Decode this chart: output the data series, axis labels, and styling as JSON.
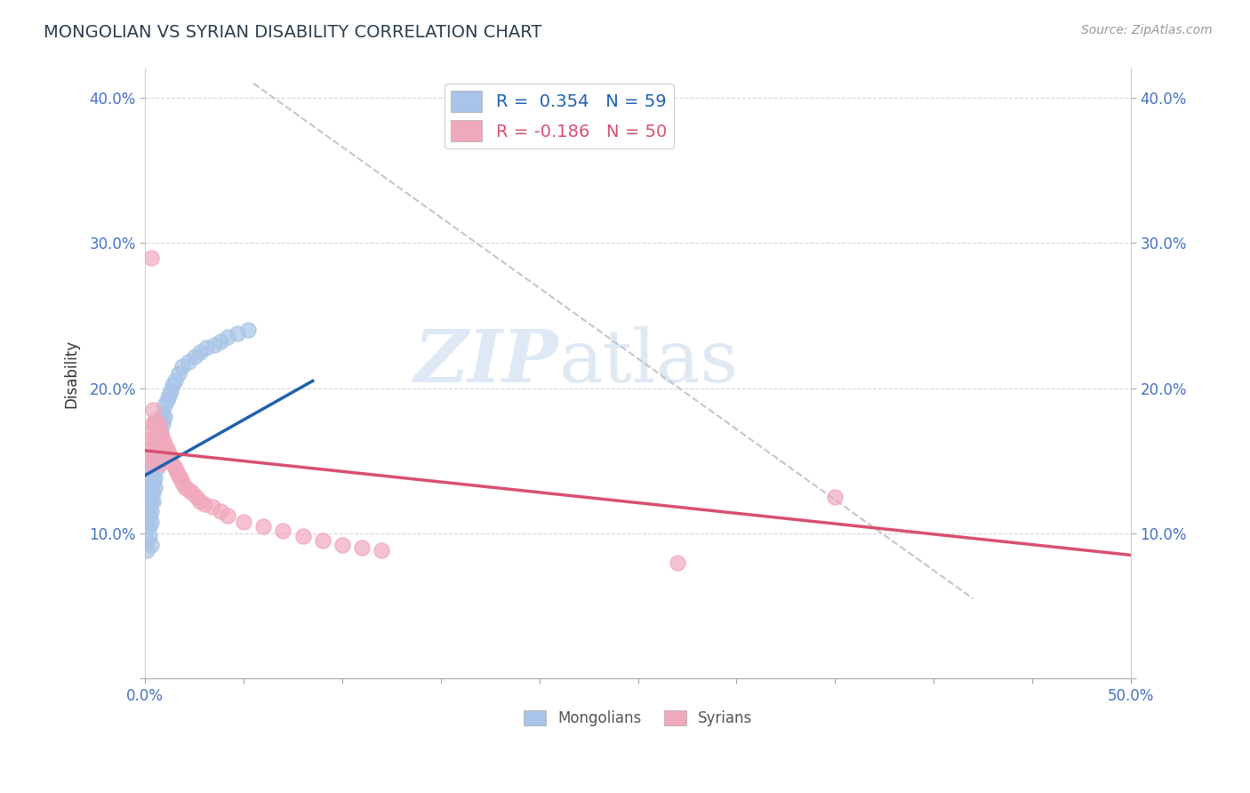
{
  "title": "MONGOLIAN VS SYRIAN DISABILITY CORRELATION CHART",
  "source": "Source: ZipAtlas.com",
  "ylabel": "Disability",
  "xlim": [
    0,
    0.5
  ],
  "ylim": [
    0,
    0.42
  ],
  "xticks": [
    0.0,
    0.05,
    0.1,
    0.15,
    0.2,
    0.25,
    0.3,
    0.35,
    0.4,
    0.45,
    0.5
  ],
  "yticks": [
    0.0,
    0.1,
    0.2,
    0.3,
    0.4
  ],
  "mongolian_R": 0.354,
  "mongolian_N": 59,
  "syrian_R": -0.186,
  "syrian_N": 50,
  "mongolian_color": "#a8c4e8",
  "syrian_color": "#f0a8bc",
  "mongolian_line_color": "#2060b0",
  "syrian_line_color": "#d85070",
  "watermark_zip": "ZIP",
  "watermark_atlas": "atlas",
  "background_color": "#ffffff",
  "mongolian_x": [
    0.001,
    0.001,
    0.001,
    0.001,
    0.002,
    0.002,
    0.002,
    0.002,
    0.002,
    0.003,
    0.003,
    0.003,
    0.003,
    0.003,
    0.003,
    0.004,
    0.004,
    0.004,
    0.004,
    0.004,
    0.004,
    0.005,
    0.005,
    0.005,
    0.005,
    0.005,
    0.006,
    0.006,
    0.006,
    0.006,
    0.007,
    0.007,
    0.007,
    0.007,
    0.008,
    0.008,
    0.009,
    0.009,
    0.01,
    0.01,
    0.011,
    0.012,
    0.013,
    0.014,
    0.015,
    0.017,
    0.019,
    0.022,
    0.025,
    0.028,
    0.031,
    0.035,
    0.038,
    0.042,
    0.047,
    0.052,
    0.002,
    0.003,
    0.001
  ],
  "mongolian_y": [
    0.115,
    0.12,
    0.108,
    0.095,
    0.13,
    0.125,
    0.118,
    0.112,
    0.105,
    0.135,
    0.128,
    0.122,
    0.115,
    0.108,
    0.142,
    0.14,
    0.148,
    0.135,
    0.128,
    0.122,
    0.155,
    0.15,
    0.145,
    0.138,
    0.132,
    0.16,
    0.165,
    0.158,
    0.152,
    0.145,
    0.168,
    0.175,
    0.162,
    0.155,
    0.178,
    0.17,
    0.182,
    0.175,
    0.188,
    0.18,
    0.192,
    0.195,
    0.198,
    0.202,
    0.205,
    0.21,
    0.215,
    0.218,
    0.222,
    0.225,
    0.228,
    0.23,
    0.232,
    0.235,
    0.238,
    0.24,
    0.098,
    0.092,
    0.088
  ],
  "syrian_x": [
    0.001,
    0.002,
    0.002,
    0.003,
    0.003,
    0.004,
    0.004,
    0.005,
    0.005,
    0.006,
    0.006,
    0.007,
    0.007,
    0.008,
    0.009,
    0.01,
    0.011,
    0.012,
    0.013,
    0.014,
    0.015,
    0.016,
    0.017,
    0.018,
    0.019,
    0.02,
    0.022,
    0.024,
    0.026,
    0.028,
    0.03,
    0.034,
    0.038,
    0.042,
    0.05,
    0.06,
    0.07,
    0.08,
    0.09,
    0.1,
    0.11,
    0.12,
    0.003,
    0.004,
    0.005,
    0.35,
    0.006,
    0.27,
    0.007,
    0.008
  ],
  "syrian_y": [
    0.158,
    0.152,
    0.165,
    0.148,
    0.17,
    0.175,
    0.155,
    0.178,
    0.162,
    0.168,
    0.172,
    0.175,
    0.16,
    0.168,
    0.165,
    0.162,
    0.158,
    0.155,
    0.15,
    0.148,
    0.145,
    0.142,
    0.14,
    0.138,
    0.135,
    0.132,
    0.13,
    0.128,
    0.125,
    0.122,
    0.12,
    0.118,
    0.115,
    0.112,
    0.108,
    0.105,
    0.102,
    0.098,
    0.095,
    0.092,
    0.09,
    0.088,
    0.29,
    0.185,
    0.175,
    0.125,
    0.165,
    0.08,
    0.148,
    0.158
  ],
  "blue_line_x": [
    0.0,
    0.085
  ],
  "blue_line_y": [
    0.14,
    0.205
  ],
  "pink_line_x": [
    0.0,
    0.5
  ],
  "pink_line_y": [
    0.157,
    0.085
  ],
  "diag_line_x": [
    0.055,
    0.42
  ],
  "diag_line_y": [
    0.41,
    0.055
  ]
}
